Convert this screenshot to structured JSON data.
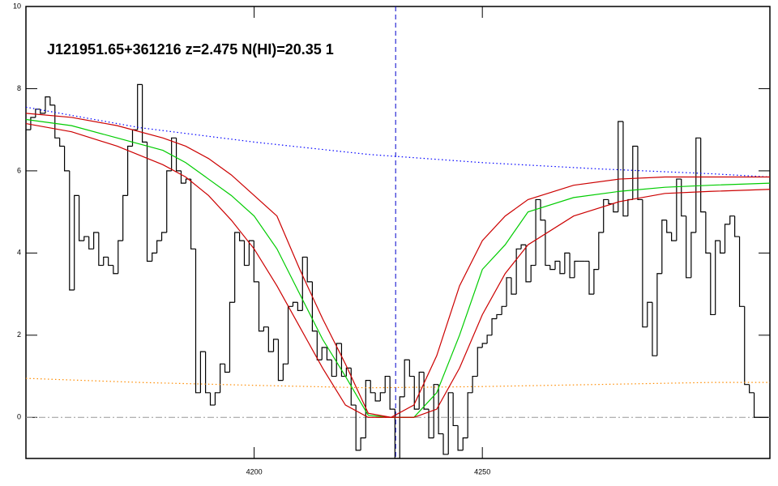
{
  "chart_data": {
    "type": "line",
    "title": "J121951.65+361216 z=2.475 N(HI)=20.35 1",
    "xlim": [
      4150,
      4313
    ],
    "ylim": [
      -1,
      10
    ],
    "xticks": [
      4200,
      4250
    ],
    "yticks": [
      0,
      2,
      4,
      6,
      8,
      10
    ],
    "grid": false,
    "marker_x": 4231,
    "marker_color": "#0000cc",
    "hline": 0,
    "hline_color": "#999999",
    "series": [
      {
        "color": "#000000",
        "style": "step",
        "x": [
          4150.5,
          4151.6,
          4152.6,
          4153.7,
          4154.8,
          4155.8,
          4156.9,
          4157.9,
          4159.0,
          4160.1,
          4161.1,
          4162.2,
          4163.3,
          4164.3,
          4165.4,
          4166.5,
          4167.5,
          4168.6,
          4169.7,
          4170.7,
          4171.8,
          4172.8,
          4173.9,
          4175.0,
          4176.0,
          4177.1,
          4178.2,
          4179.2,
          4180.3,
          4181.4,
          4182.4,
          4183.5,
          4184.5,
          4185.6,
          4186.7,
          4187.7,
          4188.8,
          4189.9,
          4190.9,
          4192.0,
          4193.1,
          4194.1,
          4195.2,
          4196.3,
          4197.3,
          4198.4,
          4199.4,
          4200.5,
          4201.6,
          4202.6,
          4203.7,
          4204.8,
          4205.8,
          4206.9,
          4208.0,
          4209.0,
          4210.1,
          4211.1,
          4212.2,
          4213.3,
          4214.3,
          4215.4,
          4216.5,
          4217.5,
          4218.6,
          4219.7,
          4220.7,
          4221.8,
          4222.8,
          4223.9,
          4225.0,
          4226.0,
          4227.1,
          4228.2,
          4229.2,
          4230.3,
          4231.4,
          4232.4,
          4233.5,
          4234.6,
          4235.6,
          4236.7,
          4237.7,
          4238.8,
          4239.9,
          4240.9,
          4242.0,
          4243.1,
          4244.1,
          4245.2,
          4246.3,
          4247.3,
          4248.4,
          4249.5,
          4250.5,
          4251.6,
          4252.6,
          4253.7,
          4254.8,
          4255.8,
          4256.9,
          4258.0,
          4259.0,
          4260.1,
          4261.2,
          4262.2,
          4263.3,
          4264.3,
          4265.4,
          4266.5,
          4267.5,
          4268.6,
          4269.7,
          4270.7,
          4271.8,
          4272.9,
          4273.9,
          4275.0,
          4276.0,
          4277.1,
          4278.2,
          4279.2,
          4280.3,
          4281.4,
          4282.4,
          4283.5,
          4284.6,
          4285.6,
          4286.7,
          4287.8,
          4288.8,
          4289.9,
          4290.9,
          4292.0,
          4293.1,
          4294.1,
          4295.2,
          4296.3,
          4297.3,
          4298.4,
          4299.5,
          4300.5,
          4301.6,
          4302.6,
          4303.7,
          4304.8,
          4305.8,
          4306.9,
          4308.0,
          4309.0,
          4310.1,
          4311.2,
          4312.2
        ],
        "values": [
          7.0,
          7.3,
          7.5,
          7.4,
          7.8,
          7.6,
          6.8,
          6.6,
          6.0,
          3.1,
          5.4,
          4.3,
          4.4,
          4.1,
          4.5,
          3.7,
          3.9,
          3.7,
          3.5,
          4.3,
          5.4,
          6.6,
          7.0,
          8.1,
          6.7,
          3.8,
          4.0,
          4.3,
          4.5,
          6.0,
          6.8,
          6.0,
          5.7,
          5.8,
          4.1,
          0.6,
          1.6,
          0.6,
          0.3,
          0.6,
          1.3,
          1.1,
          2.8,
          4.5,
          4.3,
          3.7,
          4.3,
          3.3,
          2.1,
          2.2,
          1.6,
          1.9,
          0.9,
          1.3,
          2.7,
          2.8,
          2.6,
          3.9,
          3.3,
          2.1,
          1.4,
          1.7,
          1.4,
          1.0,
          1.8,
          1.0,
          1.2,
          0.3,
          -0.8,
          -0.5,
          0.9,
          0.6,
          0.4,
          0.6,
          1.0,
          0.2,
          -1.0,
          0.5,
          1.4,
          1.0,
          0.2,
          1.1,
          0.2,
          -0.5,
          0.8,
          -0.4,
          -0.9,
          0.6,
          -0.2,
          -0.8,
          -0.5,
          0.6,
          1.0,
          1.7,
          1.8,
          2.0,
          2.4,
          2.5,
          2.7,
          3.4,
          3.0,
          4.1,
          4.2,
          3.3,
          3.7,
          5.3,
          4.8,
          3.7,
          3.6,
          3.8,
          3.5,
          4.0,
          3.4,
          3.8,
          3.8,
          3.8,
          3.0,
          3.6,
          4.5,
          5.3,
          5.2,
          5.0,
          7.2,
          4.9,
          5.3,
          6.6,
          5.3,
          2.2,
          2.8,
          1.5,
          3.5,
          4.8,
          4.5,
          4.3,
          5.8,
          4.9,
          3.4,
          4.5,
          6.8,
          5.0,
          4.0,
          2.5,
          4.3,
          4.0,
          4.7,
          4.9,
          4.4,
          2.7,
          0.8,
          0.6,
          0.0,
          0.0,
          0.0
        ]
      },
      {
        "color": "#0000ff",
        "style": "dotted",
        "x": [
          4150,
          4175,
          4200,
          4225,
          4250,
          4275,
          4300,
          4313
        ],
        "values": [
          7.55,
          7.05,
          6.7,
          6.4,
          6.2,
          6.05,
          5.93,
          5.85
        ]
      },
      {
        "color": "#ff8c00",
        "style": "dotted",
        "x": [
          4150,
          4175,
          4200,
          4225,
          4250,
          4275,
          4300,
          4313
        ],
        "values": [
          0.95,
          0.85,
          0.78,
          0.72,
          0.75,
          0.8,
          0.85,
          0.85
        ]
      },
      {
        "color": "#00cc00",
        "style": "solid",
        "x": [
          4150,
          4160,
          4170,
          4180,
          4185,
          4190,
          4195,
          4200,
          4205,
          4210,
          4215,
          4220,
          4225,
          4230,
          4235,
          4240,
          4245,
          4250,
          4255,
          4260,
          4270,
          4280,
          4290,
          4300,
          4313
        ],
        "values": [
          7.25,
          7.1,
          6.8,
          6.5,
          6.2,
          5.8,
          5.4,
          4.9,
          4.1,
          3.0,
          1.9,
          1.0,
          0.05,
          0.0,
          0.0,
          0.6,
          2.0,
          3.6,
          4.2,
          5.0,
          5.35,
          5.5,
          5.6,
          5.65,
          5.7
        ]
      },
      {
        "color": "#cc0000",
        "style": "solid",
        "x": [
          4150,
          4160,
          4170,
          4180,
          4185,
          4190,
          4195,
          4200,
          4205,
          4210,
          4215,
          4220,
          4225,
          4230,
          4235,
          4240,
          4245,
          4250,
          4255,
          4260,
          4270,
          4280,
          4290,
          4300,
          4313
        ],
        "values": [
          7.4,
          7.3,
          7.1,
          6.8,
          6.6,
          6.3,
          5.9,
          5.4,
          4.9,
          3.6,
          2.4,
          1.3,
          0.1,
          0.0,
          0.3,
          1.5,
          3.2,
          4.3,
          4.9,
          5.3,
          5.65,
          5.8,
          5.85,
          5.85,
          5.85
        ]
      },
      {
        "color": "#cc0000",
        "style": "solid",
        "x": [
          4150,
          4160,
          4170,
          4180,
          4185,
          4190,
          4195,
          4200,
          4205,
          4210,
          4215,
          4220,
          4225,
          4230,
          4235,
          4240,
          4245,
          4250,
          4255,
          4260,
          4270,
          4280,
          4290,
          4300,
          4313
        ],
        "values": [
          7.15,
          6.95,
          6.6,
          6.15,
          5.85,
          5.4,
          4.8,
          4.1,
          3.2,
          2.2,
          1.2,
          0.3,
          0.0,
          0.0,
          0.0,
          0.2,
          1.2,
          2.5,
          3.5,
          4.2,
          4.9,
          5.25,
          5.45,
          5.5,
          5.55
        ]
      }
    ]
  }
}
